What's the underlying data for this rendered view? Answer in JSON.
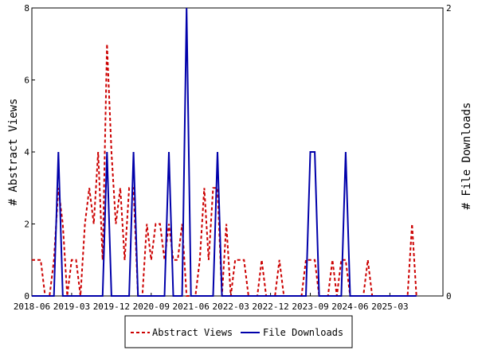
{
  "chart_data": {
    "type": "line",
    "left_axis": {
      "label": "# Abstract Views",
      "ylim": [
        0,
        8
      ],
      "ticks": [
        0,
        2,
        4,
        6,
        8
      ]
    },
    "right_axis": {
      "label": "# File Downloads",
      "ylim": [
        0,
        2
      ],
      "ticks": [
        0,
        2
      ]
    },
    "x_axis": {
      "start": "2018-06",
      "end": "2026-03",
      "ticks": [
        "2018-06",
        "2019-03",
        "2019-12",
        "2020-09",
        "2021-06",
        "2022-03",
        "2022-12",
        "2023-09",
        "2024-06",
        "2025-03"
      ]
    },
    "grid": false,
    "legend_position": "bottom",
    "series": [
      {
        "name": "Abstract Views",
        "axis": "left",
        "color": "#cc0000",
        "style": "dashed",
        "points": [
          [
            "2018-06",
            1
          ],
          [
            "2018-07",
            1
          ],
          [
            "2018-08",
            1
          ],
          [
            "2018-09",
            0
          ],
          [
            "2018-10",
            0
          ],
          [
            "2018-11",
            1
          ],
          [
            "2018-12",
            3
          ],
          [
            "2019-01",
            2
          ],
          [
            "2019-02",
            0
          ],
          [
            "2019-03",
            1
          ],
          [
            "2019-04",
            1
          ],
          [
            "2019-05",
            0
          ],
          [
            "2019-06",
            2
          ],
          [
            "2019-07",
            3
          ],
          [
            "2019-08",
            2
          ],
          [
            "2019-09",
            4
          ],
          [
            "2019-10",
            1
          ],
          [
            "2019-11",
            7
          ],
          [
            "2019-12",
            4
          ],
          [
            "2020-01",
            2
          ],
          [
            "2020-02",
            3
          ],
          [
            "2020-03",
            1
          ],
          [
            "2020-04",
            3
          ],
          [
            "2020-05",
            3
          ],
          [
            "2020-06",
            0
          ],
          [
            "2020-07",
            0
          ],
          [
            "2020-08",
            2
          ],
          [
            "2020-09",
            1
          ],
          [
            "2020-10",
            2
          ],
          [
            "2020-11",
            2
          ],
          [
            "2020-12",
            1
          ],
          [
            "2021-01",
            2
          ],
          [
            "2021-02",
            1
          ],
          [
            "2021-03",
            1
          ],
          [
            "2021-04",
            2
          ],
          [
            "2021-05",
            0
          ],
          [
            "2021-06",
            0
          ],
          [
            "2021-07",
            0
          ],
          [
            "2021-08",
            1
          ],
          [
            "2021-09",
            3
          ],
          [
            "2021-10",
            1
          ],
          [
            "2021-11",
            3
          ],
          [
            "2021-12",
            3
          ],
          [
            "2022-01",
            0
          ],
          [
            "2022-02",
            2
          ],
          [
            "2022-03",
            0
          ],
          [
            "2022-04",
            1
          ],
          [
            "2022-05",
            1
          ],
          [
            "2022-06",
            1
          ],
          [
            "2022-07",
            0
          ],
          [
            "2022-08",
            0
          ],
          [
            "2022-09",
            0
          ],
          [
            "2022-10",
            1
          ],
          [
            "2022-11",
            0
          ],
          [
            "2022-12",
            0
          ],
          [
            "2023-01",
            0
          ],
          [
            "2023-02",
            1
          ],
          [
            "2023-03",
            0
          ],
          [
            "2023-04",
            0
          ],
          [
            "2023-05",
            0
          ],
          [
            "2023-06",
            0
          ],
          [
            "2023-07",
            0
          ],
          [
            "2023-08",
            1
          ],
          [
            "2023-09",
            1
          ],
          [
            "2023-10",
            1
          ],
          [
            "2023-11",
            0
          ],
          [
            "2023-12",
            0
          ],
          [
            "2024-01",
            0
          ],
          [
            "2024-02",
            1
          ],
          [
            "2024-03",
            0
          ],
          [
            "2024-04",
            1
          ],
          [
            "2024-05",
            1
          ],
          [
            "2024-06",
            0
          ],
          [
            "2024-07",
            0
          ],
          [
            "2024-08",
            0
          ],
          [
            "2024-09",
            0
          ],
          [
            "2024-10",
            1
          ],
          [
            "2024-11",
            0
          ],
          [
            "2024-12",
            0
          ],
          [
            "2025-01",
            0
          ],
          [
            "2025-02",
            0
          ],
          [
            "2025-03",
            0
          ],
          [
            "2025-04",
            0
          ],
          [
            "2025-05",
            0
          ],
          [
            "2025-06",
            0
          ],
          [
            "2025-07",
            0
          ],
          [
            "2025-08",
            2
          ],
          [
            "2025-09",
            0
          ]
        ]
      },
      {
        "name": "File Downloads",
        "axis": "right",
        "color": "#0000aa",
        "style": "solid",
        "points": [
          [
            "2018-06",
            0
          ],
          [
            "2018-07",
            0
          ],
          [
            "2018-08",
            0
          ],
          [
            "2018-09",
            0
          ],
          [
            "2018-10",
            0
          ],
          [
            "2018-11",
            0
          ],
          [
            "2018-12",
            1
          ],
          [
            "2019-01",
            0
          ],
          [
            "2019-02",
            0
          ],
          [
            "2019-03",
            0
          ],
          [
            "2019-04",
            0
          ],
          [
            "2019-05",
            0
          ],
          [
            "2019-06",
            0
          ],
          [
            "2019-07",
            0
          ],
          [
            "2019-08",
            0
          ],
          [
            "2019-09",
            0
          ],
          [
            "2019-10",
            0
          ],
          [
            "2019-11",
            1
          ],
          [
            "2019-12",
            0
          ],
          [
            "2020-01",
            0
          ],
          [
            "2020-02",
            0
          ],
          [
            "2020-03",
            0
          ],
          [
            "2020-04",
            0
          ],
          [
            "2020-05",
            1
          ],
          [
            "2020-06",
            0
          ],
          [
            "2020-07",
            0
          ],
          [
            "2020-08",
            0
          ],
          [
            "2020-09",
            0
          ],
          [
            "2020-10",
            0
          ],
          [
            "2020-11",
            0
          ],
          [
            "2020-12",
            0
          ],
          [
            "2021-01",
            1
          ],
          [
            "2021-02",
            0
          ],
          [
            "2021-03",
            0
          ],
          [
            "2021-04",
            0
          ],
          [
            "2021-05",
            2
          ],
          [
            "2021-06",
            0
          ],
          [
            "2021-07",
            0
          ],
          [
            "2021-08",
            0
          ],
          [
            "2021-09",
            0
          ],
          [
            "2021-10",
            0
          ],
          [
            "2021-11",
            0
          ],
          [
            "2021-12",
            1
          ],
          [
            "2022-01",
            0
          ],
          [
            "2022-02",
            0
          ],
          [
            "2022-03",
            0
          ],
          [
            "2022-04",
            0
          ],
          [
            "2022-05",
            0
          ],
          [
            "2022-06",
            0
          ],
          [
            "2022-07",
            0
          ],
          [
            "2022-08",
            0
          ],
          [
            "2022-09",
            0
          ],
          [
            "2022-10",
            0
          ],
          [
            "2022-11",
            0
          ],
          [
            "2022-12",
            0
          ],
          [
            "2023-01",
            0
          ],
          [
            "2023-02",
            0
          ],
          [
            "2023-03",
            0
          ],
          [
            "2023-04",
            0
          ],
          [
            "2023-05",
            0
          ],
          [
            "2023-06",
            0
          ],
          [
            "2023-07",
            0
          ],
          [
            "2023-08",
            0
          ],
          [
            "2023-09",
            1
          ],
          [
            "2023-10",
            1
          ],
          [
            "2023-11",
            0
          ],
          [
            "2023-12",
            0
          ],
          [
            "2024-01",
            0
          ],
          [
            "2024-02",
            0
          ],
          [
            "2024-03",
            0
          ],
          [
            "2024-04",
            0
          ],
          [
            "2024-05",
            1
          ],
          [
            "2024-06",
            0
          ],
          [
            "2024-07",
            0
          ],
          [
            "2024-08",
            0
          ],
          [
            "2024-09",
            0
          ],
          [
            "2024-10",
            0
          ],
          [
            "2024-11",
            0
          ],
          [
            "2024-12",
            0
          ],
          [
            "2025-01",
            0
          ],
          [
            "2025-02",
            0
          ],
          [
            "2025-03",
            0
          ],
          [
            "2025-04",
            0
          ],
          [
            "2025-05",
            0
          ],
          [
            "2025-06",
            0
          ],
          [
            "2025-07",
            0
          ],
          [
            "2025-08",
            0
          ],
          [
            "2025-09",
            0
          ]
        ]
      }
    ]
  }
}
